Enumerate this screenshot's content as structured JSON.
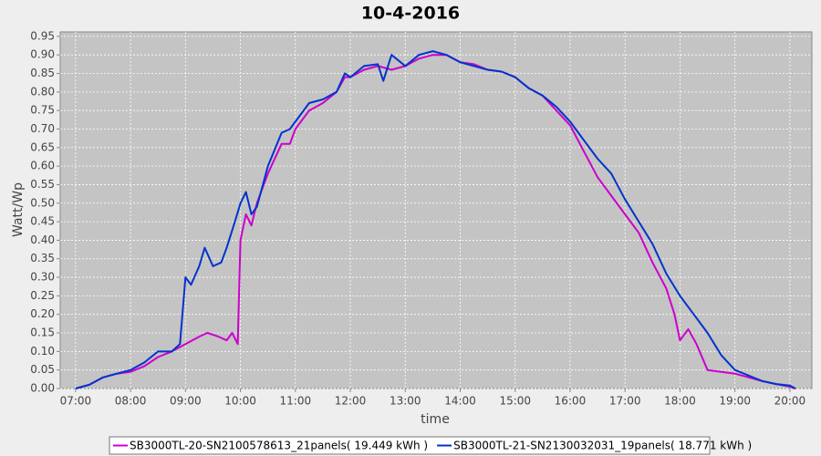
{
  "chart_data": {
    "type": "line",
    "title": "10-4-2016",
    "x_label": "time",
    "y_label": "Watt/Wp",
    "xlim": [
      6.72,
      20.4
    ],
    "ylim": [
      0,
      0.962
    ],
    "grid": true,
    "legend": "bottom",
    "xticks": [
      {
        "value": 7,
        "label": "07:00"
      },
      {
        "value": 8,
        "label": "08:00"
      },
      {
        "value": 9,
        "label": "09:00"
      },
      {
        "value": 10,
        "label": "10:00"
      },
      {
        "value": 11,
        "label": "11:00"
      },
      {
        "value": 12,
        "label": "12:00"
      },
      {
        "value": 13,
        "label": "13:00"
      },
      {
        "value": 14,
        "label": "14:00"
      },
      {
        "value": 15,
        "label": "15:00"
      },
      {
        "value": 16,
        "label": "16:00"
      },
      {
        "value": 17,
        "label": "17:00"
      },
      {
        "value": 18,
        "label": "18:00"
      },
      {
        "value": 19,
        "label": "19:00"
      },
      {
        "value": 20,
        "label": "20:00"
      }
    ],
    "yticks": [
      {
        "value": 0,
        "label": "0.00"
      },
      {
        "value": 0.05,
        "label": "0.05"
      },
      {
        "value": 0.1,
        "label": "0.10"
      },
      {
        "value": 0.15,
        "label": "0.15"
      },
      {
        "value": 0.2,
        "label": "0.20"
      },
      {
        "value": 0.25,
        "label": "0.25"
      },
      {
        "value": 0.3,
        "label": "0.30"
      },
      {
        "value": 0.35,
        "label": "0.35"
      },
      {
        "value": 0.4,
        "label": "0.40"
      },
      {
        "value": 0.45,
        "label": "0.45"
      },
      {
        "value": 0.5,
        "label": "0.50"
      },
      {
        "value": 0.55,
        "label": "0.55"
      },
      {
        "value": 0.6,
        "label": "0.60"
      },
      {
        "value": 0.65,
        "label": "0.65"
      },
      {
        "value": 0.7,
        "label": "0.70"
      },
      {
        "value": 0.75,
        "label": "0.75"
      },
      {
        "value": 0.8,
        "label": "0.80"
      },
      {
        "value": 0.85,
        "label": "0.85"
      },
      {
        "value": 0.9,
        "label": "0.90"
      },
      {
        "value": 0.95,
        "label": "0.95"
      }
    ],
    "series": [
      {
        "name": "SB3000TL-20-SN2100578613_21panels( 19.449 kWh )",
        "color": "#cc00cc",
        "x": [
          7.0,
          7.25,
          7.5,
          7.75,
          8.0,
          8.25,
          8.5,
          8.75,
          9.0,
          9.25,
          9.4,
          9.6,
          9.75,
          9.85,
          9.95,
          10.0,
          10.1,
          10.2,
          10.3,
          10.5,
          10.75,
          10.9,
          11.0,
          11.25,
          11.5,
          11.75,
          11.9,
          12.0,
          12.25,
          12.5,
          12.75,
          13.0,
          13.25,
          13.5,
          13.75,
          14.0,
          14.25,
          14.5,
          14.75,
          15.0,
          15.25,
          15.5,
          15.75,
          16.0,
          16.25,
          16.5,
          16.75,
          17.0,
          17.25,
          17.5,
          17.75,
          17.9,
          18.0,
          18.15,
          18.3,
          18.5,
          18.75,
          19.0,
          19.25,
          19.5,
          19.75,
          20.0,
          20.1
        ],
        "values": [
          0,
          0.01,
          0.03,
          0.04,
          0.045,
          0.06,
          0.085,
          0.1,
          0.12,
          0.14,
          0.15,
          0.14,
          0.13,
          0.15,
          0.12,
          0.4,
          0.47,
          0.44,
          0.5,
          0.58,
          0.66,
          0.66,
          0.7,
          0.75,
          0.77,
          0.8,
          0.84,
          0.84,
          0.86,
          0.87,
          0.86,
          0.87,
          0.89,
          0.9,
          0.9,
          0.88,
          0.875,
          0.86,
          0.855,
          0.84,
          0.81,
          0.79,
          0.75,
          0.71,
          0.64,
          0.57,
          0.52,
          0.47,
          0.42,
          0.34,
          0.27,
          0.2,
          0.13,
          0.16,
          0.12,
          0.05,
          0.045,
          0.04,
          0.03,
          0.02,
          0.012,
          0.005,
          0
        ]
      },
      {
        "name": "SB3000TL-21-SN2130032031_19panels( 18.771 kWh )",
        "color": "#0033cc",
        "x": [
          7.0,
          7.25,
          7.5,
          7.75,
          8.0,
          8.25,
          8.5,
          8.75,
          8.9,
          9.0,
          9.1,
          9.25,
          9.35,
          9.5,
          9.65,
          9.75,
          9.9,
          10.0,
          10.1,
          10.2,
          10.3,
          10.5,
          10.75,
          10.9,
          11.0,
          11.25,
          11.5,
          11.75,
          11.9,
          12.0,
          12.25,
          12.5,
          12.6,
          12.75,
          13.0,
          13.25,
          13.5,
          13.75,
          14.0,
          14.25,
          14.5,
          14.75,
          15.0,
          15.25,
          15.5,
          15.75,
          16.0,
          16.25,
          16.5,
          16.75,
          17.0,
          17.25,
          17.5,
          17.75,
          18.0,
          18.25,
          18.5,
          18.75,
          19.0,
          19.25,
          19.5,
          19.75,
          20.0,
          20.1
        ],
        "values": [
          0,
          0.01,
          0.03,
          0.04,
          0.05,
          0.07,
          0.1,
          0.1,
          0.12,
          0.3,
          0.28,
          0.33,
          0.38,
          0.33,
          0.34,
          0.38,
          0.45,
          0.5,
          0.53,
          0.47,
          0.49,
          0.6,
          0.69,
          0.7,
          0.72,
          0.77,
          0.78,
          0.8,
          0.85,
          0.84,
          0.87,
          0.875,
          0.83,
          0.9,
          0.87,
          0.9,
          0.91,
          0.9,
          0.88,
          0.87,
          0.86,
          0.855,
          0.84,
          0.81,
          0.79,
          0.76,
          0.72,
          0.67,
          0.62,
          0.58,
          0.51,
          0.45,
          0.39,
          0.31,
          0.25,
          0.2,
          0.15,
          0.09,
          0.05,
          0.035,
          0.02,
          0.012,
          0.008,
          0
        ]
      }
    ]
  }
}
